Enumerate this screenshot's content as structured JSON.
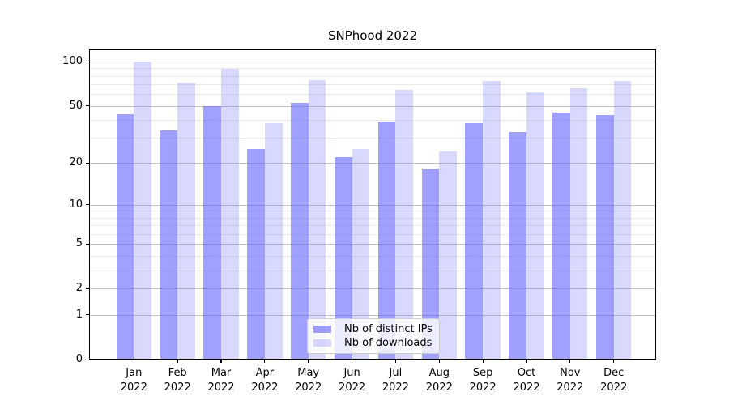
{
  "title": "SNPhood 2022",
  "chart_data": {
    "type": "bar",
    "title": "SNPhood 2022",
    "categories": [
      "Jan",
      "Feb",
      "Mar",
      "Apr",
      "May",
      "Jun",
      "Jul",
      "Aug",
      "Sep",
      "Oct",
      "Nov",
      "Dec"
    ],
    "category_year": "2022",
    "series": [
      {
        "name": "Nb of distinct IPs",
        "color": "rgba(102,102,255,0.62)",
        "values": [
          44,
          34,
          50,
          25,
          52,
          22,
          39,
          18,
          38,
          33,
          45,
          43
        ]
      },
      {
        "name": "Nb of downloads",
        "color": "rgba(102,102,255,0.25)",
        "values": [
          100,
          72,
          89,
          38,
          75,
          25,
          64,
          24,
          74,
          62,
          66,
          74
        ]
      }
    ],
    "xlabel": "",
    "ylabel": "",
    "yscale": "log1p",
    "ylim": [
      0,
      118
    ],
    "yticks": [
      100,
      50,
      20,
      10,
      5,
      2,
      1,
      0
    ],
    "yticks_minor": [
      90,
      80,
      70,
      60,
      40,
      30,
      9,
      8,
      7,
      6,
      4,
      3
    ],
    "grid": true,
    "legend_position": "lower center"
  },
  "colors": {
    "background": "#ffffff",
    "bar_distinct_ips": "rgba(102,102,255,0.62)",
    "bar_downloads": "rgba(102,102,255,0.25)",
    "grid_major": "#c3c3c3",
    "grid_minor": "#ebebeb",
    "spine": "#000000",
    "text": "#000000",
    "legend_border": "#cccccc"
  }
}
